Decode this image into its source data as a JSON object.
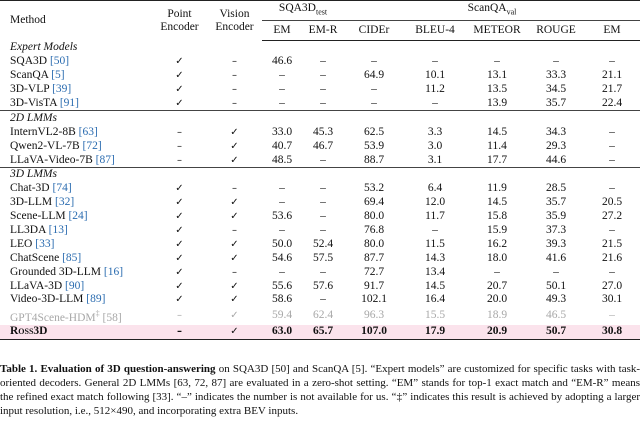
{
  "header": {
    "columns": [
      "Method",
      "Point Encoder",
      "Vision Encoder"
    ],
    "groups": [
      {
        "name": "SQA3D",
        "sub": "test"
      },
      {
        "name": "ScanQA",
        "sub": "val"
      }
    ],
    "metrics": [
      "EM",
      "EM-R",
      "CIDEr",
      "BLEU-4",
      "METEOR",
      "ROUGE",
      "EM"
    ]
  },
  "sections": [
    {
      "title": "Expert Models",
      "rows": [
        {
          "method": "SQA3D",
          "ref": "[50]",
          "cells": [
            "✓",
            "–",
            "46.6",
            "–",
            "–",
            "–",
            "–",
            "–",
            "–"
          ]
        },
        {
          "method": "ScanQA",
          "ref": "[5]",
          "cells": [
            "✓",
            "–",
            "–",
            "–",
            "64.9",
            "10.1",
            "13.1",
            "33.3",
            "21.1"
          ]
        },
        {
          "method": "3D-VLP",
          "ref": "[39]",
          "cells": [
            "✓",
            "–",
            "–",
            "–",
            "–",
            "11.2",
            "13.5",
            "34.5",
            "21.7"
          ]
        },
        {
          "method": "3D-VisTA",
          "ref": "[91]",
          "cells": [
            "✓",
            "–",
            "–",
            "–",
            "–",
            "–",
            "13.9",
            "35.7",
            "22.4"
          ]
        }
      ]
    },
    {
      "title": "2D LMMs",
      "rows": [
        {
          "method": "InternVL2-8B",
          "ref": "[63]",
          "cells": [
            "–",
            "✓",
            "33.0",
            "45.3",
            "62.5",
            "3.3",
            "14.5",
            "34.3",
            "–"
          ]
        },
        {
          "method": "Qwen2-VL-7B",
          "ref": "[72]",
          "cells": [
            "–",
            "✓",
            "40.7",
            "46.7",
            "53.9",
            "3.0",
            "11.4",
            "29.3",
            "–"
          ]
        },
        {
          "method": "LLaVA-Video-7B",
          "ref": "[87]",
          "cells": [
            "–",
            "✓",
            "48.5",
            "–",
            "88.7",
            "3.1",
            "17.7",
            "44.6",
            "–"
          ]
        }
      ]
    },
    {
      "title": "3D LMMs",
      "rows": [
        {
          "method": "Chat-3D",
          "ref": "[74]",
          "cells": [
            "✓",
            "–",
            "–",
            "–",
            "53.2",
            "6.4",
            "11.9",
            "28.5",
            "–"
          ]
        },
        {
          "method": "3D-LLM",
          "ref": "[32]",
          "cells": [
            "✓",
            "✓",
            "–",
            "–",
            "69.4",
            "12.0",
            "14.5",
            "35.7",
            "20.5"
          ]
        },
        {
          "method": "Scene-LLM",
          "ref": "[24]",
          "cells": [
            "✓",
            "✓",
            "53.6",
            "–",
            "80.0",
            "11.7",
            "15.8",
            "35.9",
            "27.2"
          ]
        },
        {
          "method": "LL3DA",
          "ref": "[13]",
          "cells": [
            "✓",
            "–",
            "–",
            "–",
            "76.8",
            "–",
            "15.9",
            "37.3",
            "–"
          ]
        },
        {
          "method": "LEO",
          "ref": "[33]",
          "cells": [
            "✓",
            "✓",
            "50.0",
            "52.4",
            "80.0",
            "11.5",
            "16.2",
            "39.3",
            "21.5"
          ]
        },
        {
          "method": "ChatScene",
          "ref": "[85]",
          "cells": [
            "✓",
            "✓",
            "54.6",
            "57.5",
            "87.7",
            "14.3",
            "18.0",
            "41.6",
            "21.6"
          ]
        },
        {
          "method": "Grounded 3D-LLM",
          "ref": "[16]",
          "cells": [
            "✓",
            "–",
            "–",
            "–",
            "72.7",
            "13.4",
            "–",
            "–",
            "–"
          ]
        },
        {
          "method": "LLaVA-3D",
          "ref": "[90]",
          "cells": [
            "✓",
            "✓",
            "55.6",
            "57.6",
            "91.7",
            "14.5",
            "20.7",
            "50.1",
            "27.0"
          ]
        },
        {
          "method": "Video-3D-LLM",
          "ref": "[89]",
          "cells": [
            "✓",
            "✓",
            "58.6",
            "–",
            "102.1",
            "16.4",
            "20.0",
            "49.3",
            "30.1"
          ]
        },
        {
          "method": "GPT4Scene-HDM",
          "note": "‡",
          "ref": "[58]",
          "cells": [
            "–",
            "✓",
            "59.4",
            "62.4",
            "96.3",
            "15.5",
            "18.9",
            "46.5",
            "–"
          ]
        },
        {
          "method": "Ross3D",
          "cells": [
            "–",
            "✓",
            "63.0",
            "65.7",
            "107.0",
            "17.9",
            "20.9",
            "50.7",
            "30.8"
          ]
        }
      ]
    }
  ],
  "caption": {
    "label": "Table 1.",
    "heading": "Evaluation of 3D question-answering",
    "body": "on SQA3D [50] and ScanQA [5]. “Expert models” are customized for specific tasks with task-oriented decoders. General 2D LMMs [63, 72, 87] are evaluated in a zero-shot setting. “EM” stands for top-1 exact match and “EM-R” means the refined exact match following [33]. “–” indicates the number is not available for us. “‡” indicates this result is achieved by adopting a larger input resolution, i.e., 512×490, and incorporating extra BEV inputs."
  }
}
